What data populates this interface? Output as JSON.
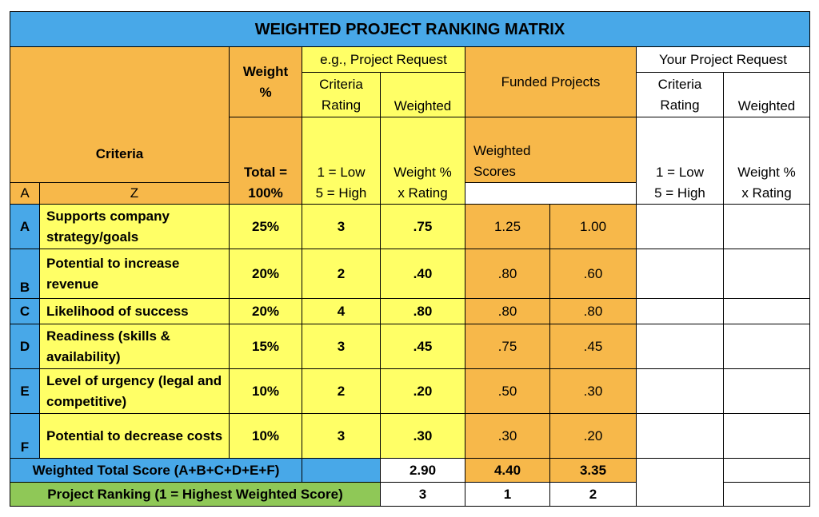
{
  "title": "WEIGHTED PROJECT RANKING MATRIX",
  "headers": {
    "example_group": "e.g., Project Request",
    "weight_label_1": "Weight",
    "weight_label_2": "%",
    "criteria_rating_1": "Criteria",
    "criteria_rating_2": "Rating",
    "weighted": "Weighted",
    "funded_projects": "Funded Projects",
    "your_group": "Your Project Request",
    "your_criteria_1": "Criteria",
    "your_criteria_2": "Rating",
    "your_weighted": "Weighted",
    "criteria": "Criteria",
    "total_1": "Total =",
    "total_2": "100%",
    "low": "1 = Low",
    "high": "5 = High",
    "weight_x_1": "Weight %",
    "weight_x_2": "x Rating",
    "weighted_scores_1": "Weighted",
    "weighted_scores_2": "Scores",
    "col_a": "A",
    "col_z": "Z",
    "your_low": "1 = Low",
    "your_high": "5 = High",
    "your_weight_x_1": "Weight %",
    "your_weight_x_2": "x Rating"
  },
  "rows": [
    {
      "letter": "A",
      "criteria": "Supports company strategy/goals",
      "weight": "25%",
      "rating": "3",
      "weighted": ".75",
      "a": "1.25",
      "z": "1.00"
    },
    {
      "letter": "B",
      "criteria": "Potential to increase revenue",
      "weight": "20%",
      "rating": "2",
      "weighted": ".40",
      "a": ".80",
      "z": ".60"
    },
    {
      "letter": "C",
      "criteria": "Likelihood of success",
      "weight": "20%",
      "rating": "4",
      "weighted": ".80",
      "a": ".80",
      "z": ".80"
    },
    {
      "letter": "D",
      "criteria": "Readiness (skills & availability)",
      "weight": "15%",
      "rating": "3",
      "weighted": ".45",
      "a": ".75",
      "z": ".45"
    },
    {
      "letter": "E",
      "criteria": "Level of urgency (legal and competitive)",
      "weight": "10%",
      "rating": "2",
      "weighted": ".20",
      "a": ".50",
      "z": ".30"
    },
    {
      "letter": "F",
      "criteria": "Potential to decrease costs",
      "weight": "10%",
      "rating": "3",
      "weighted": ".30",
      "a": ".30",
      "z": ".20"
    }
  ],
  "total": {
    "label": "Weighted Total Score (A+B+C+D+E+F)",
    "example": "2.90",
    "a": "4.40",
    "z": "3.35"
  },
  "ranking": {
    "label": "Project Ranking (1 = Highest Weighted Score)",
    "example": "3",
    "a": "1",
    "z": "2"
  },
  "colors": {
    "title_blue": "#48a8e8",
    "orange": "#f7b84a",
    "yellow": "#ffff66",
    "green": "#8fc857"
  }
}
